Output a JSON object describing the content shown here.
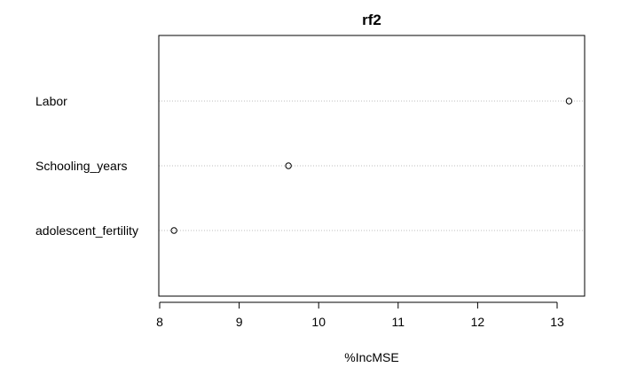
{
  "chart_data": {
    "type": "scatter",
    "title": "rf2",
    "xlabel": "%IncMSE",
    "ylabel": "",
    "xlim": [
      8,
      13.3
    ],
    "xticks": [
      8,
      9,
      10,
      11,
      12,
      13
    ],
    "categories": [
      "Labor",
      "Schooling_years",
      "adolescent_fertility"
    ],
    "values": [
      13.15,
      9.62,
      8.18
    ],
    "grid": "dotted horizontal guide per category",
    "legend": "none",
    "colors": {
      "points": "#000000",
      "grid": "#bebebe",
      "frame": "#000000"
    }
  }
}
